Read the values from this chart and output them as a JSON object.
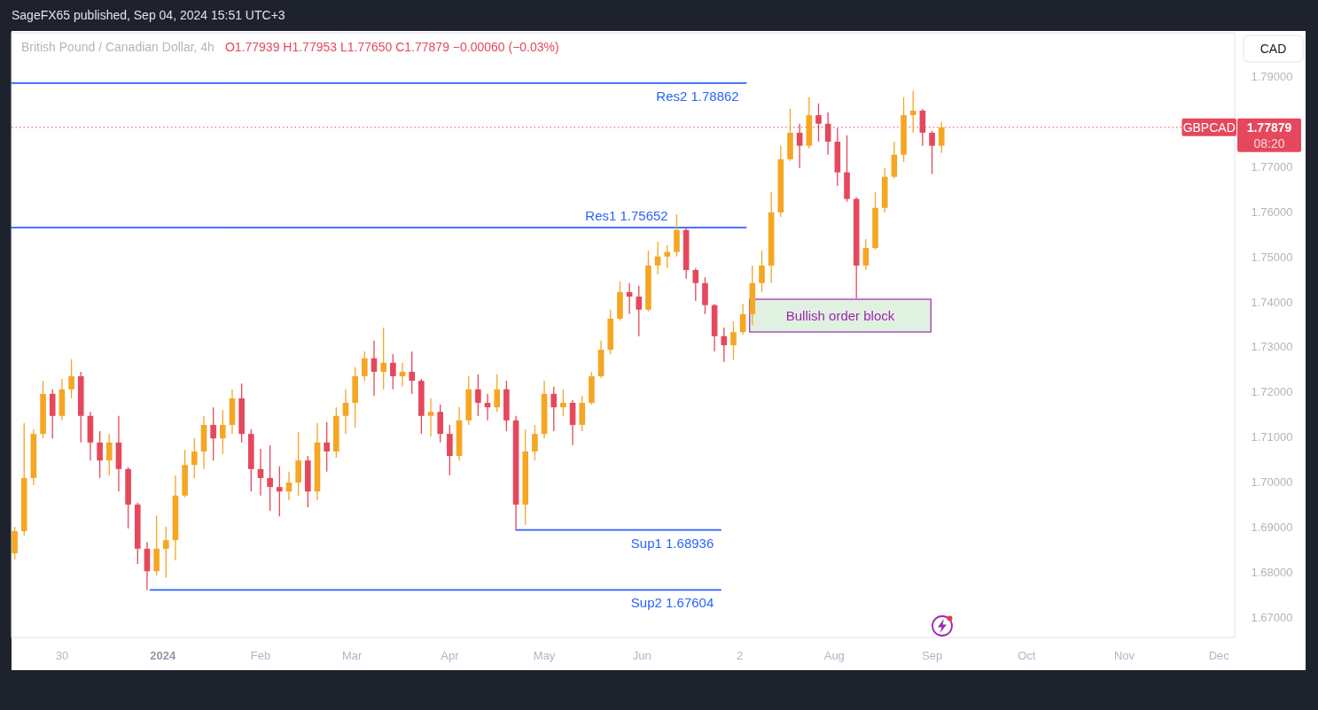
{
  "chart_data": {
    "type": "candlestick",
    "title": "British Pound / Canadian Dollar, 4h",
    "subtitle": "O1.77939 H1.77953 L1.77650 C1.77879 −0.00060 (−0.03%)",
    "ylabel": "CAD",
    "annotations": [
      "SageFX65 published, Sep 04, 2024 15:51 UTC+3",
      "1.77879",
      "08:20",
      "Bullish order block"
    ],
    "x": [
      "2023-11-15",
      "2023-11-18",
      "2023-11-21",
      "2023-11-24",
      "2023-11-27",
      "2023-11-30",
      "2023-12-03",
      "2023-12-06",
      "2023-12-09",
      "2023-12-12",
      "2023-12-15",
      "2023-12-18",
      "2023-12-21",
      "2023-12-24",
      "2023-12-27",
      "2023-12-30",
      "2024-01-02",
      "2024-01-05",
      "2024-01-08",
      "2024-01-11",
      "2024-01-14",
      "2024-01-17",
      "2024-01-20",
      "2024-01-23",
      "2024-01-26",
      "2024-01-29",
      "2024-02-01",
      "2024-02-04",
      "2024-02-07",
      "2024-02-10",
      "2024-02-13",
      "2024-02-16",
      "2024-02-19",
      "2024-02-22",
      "2024-02-25",
      "2024-02-28",
      "2024-03-02",
      "2024-03-05",
      "2024-03-08",
      "2024-03-11",
      "2024-03-14",
      "2024-03-17",
      "2024-03-20",
      "2024-03-23",
      "2024-03-26",
      "2024-03-29",
      "2024-04-01",
      "2024-04-04",
      "2024-04-07",
      "2024-04-10",
      "2024-04-13",
      "2024-04-16",
      "2024-04-19",
      "2024-04-22",
      "2024-04-25",
      "2024-04-28",
      "2024-05-01",
      "2024-05-04",
      "2024-05-07",
      "2024-05-10",
      "2024-05-13",
      "2024-05-16",
      "2024-05-19",
      "2024-05-22",
      "2024-05-25",
      "2024-05-28",
      "2024-05-31",
      "2024-06-03",
      "2024-06-06",
      "2024-06-09",
      "2024-06-12",
      "2024-06-15",
      "2024-06-18",
      "2024-06-21",
      "2024-06-24",
      "2024-06-27",
      "2024-06-30",
      "2024-07-03",
      "2024-07-06",
      "2024-07-09",
      "2024-07-12",
      "2024-07-15",
      "2024-07-18",
      "2024-07-21",
      "2024-07-24",
      "2024-07-27",
      "2024-07-30",
      "2024-08-02",
      "2024-08-05",
      "2024-08-08",
      "2024-08-11",
      "2024-08-14",
      "2024-08-17",
      "2024-08-20",
      "2024-08-23",
      "2024-08-26",
      "2024-08-29",
      "2024-09-01",
      "2024-09-04"
    ],
    "ohlc": [
      [
        1.6842,
        1.6901,
        1.6828,
        1.6891
      ],
      [
        1.6891,
        1.7131,
        1.6881,
        1.7009
      ],
      [
        1.7009,
        1.7117,
        1.6993,
        1.7107
      ],
      [
        1.7107,
        1.7225,
        1.7097,
        1.7196
      ],
      [
        1.7196,
        1.7206,
        1.7097,
        1.7147
      ],
      [
        1.7147,
        1.7229,
        1.7137,
        1.7206
      ],
      [
        1.7206,
        1.7273,
        1.7186,
        1.7235
      ],
      [
        1.7235,
        1.7245,
        1.7088,
        1.7147
      ],
      [
        1.7147,
        1.7156,
        1.7048,
        1.7088
      ],
      [
        1.7088,
        1.7113,
        1.7009,
        1.7048
      ],
      [
        1.7048,
        1.7107,
        1.7015,
        1.7088
      ],
      [
        1.7088,
        1.7147,
        1.6979,
        1.7029
      ],
      [
        1.7029,
        1.7033,
        1.6897,
        1.695
      ],
      [
        1.695,
        1.6954,
        1.6818,
        1.6852
      ],
      [
        1.6852,
        1.6867,
        1.676,
        1.6802
      ],
      [
        1.6802,
        1.6926,
        1.6793,
        1.6852
      ],
      [
        1.6852,
        1.6901,
        1.6787,
        1.6871
      ],
      [
        1.6871,
        1.7015,
        1.6826,
        1.697
      ],
      [
        1.697,
        1.7072,
        1.6966,
        1.7038
      ],
      [
        1.7038,
        1.7097,
        1.7009,
        1.7068
      ],
      [
        1.7068,
        1.7147,
        1.7029,
        1.7127
      ],
      [
        1.7127,
        1.7166,
        1.7048,
        1.7097
      ],
      [
        1.7097,
        1.716,
        1.7062,
        1.7127
      ],
      [
        1.7127,
        1.7206,
        1.7107,
        1.7186
      ],
      [
        1.7186,
        1.7219,
        1.7088,
        1.7107
      ],
      [
        1.7107,
        1.7117,
        1.6979,
        1.7029
      ],
      [
        1.7029,
        1.7074,
        1.697,
        1.7009
      ],
      [
        1.7009,
        1.7082,
        1.6936,
        1.6989
      ],
      [
        1.6989,
        1.7035,
        1.6924,
        1.6979
      ],
      [
        1.6979,
        1.7023,
        1.696,
        1.6999
      ],
      [
        1.6999,
        1.7111,
        1.697,
        1.7048
      ],
      [
        1.7048,
        1.7058,
        1.6944,
        1.6979
      ],
      [
        1.6979,
        1.7131,
        1.696,
        1.7088
      ],
      [
        1.7088,
        1.7133,
        1.7023,
        1.7068
      ],
      [
        1.7068,
        1.7166,
        1.7054,
        1.7147
      ],
      [
        1.7147,
        1.7206,
        1.7107,
        1.7176
      ],
      [
        1.7176,
        1.7255,
        1.7121,
        1.7235
      ],
      [
        1.7235,
        1.729,
        1.7225,
        1.7275
      ],
      [
        1.7275,
        1.7314,
        1.7192,
        1.7245
      ],
      [
        1.7245,
        1.7343,
        1.7206,
        1.7265
      ],
      [
        1.7265,
        1.7284,
        1.7206,
        1.7235
      ],
      [
        1.7235,
        1.7265,
        1.7212,
        1.7245
      ],
      [
        1.7245,
        1.729,
        1.7196,
        1.7225
      ],
      [
        1.7225,
        1.7229,
        1.7107,
        1.7147
      ],
      [
        1.7147,
        1.7186,
        1.7101,
        1.7156
      ],
      [
        1.7156,
        1.7172,
        1.7088,
        1.7107
      ],
      [
        1.7107,
        1.7127,
        1.7015,
        1.7058
      ],
      [
        1.7058,
        1.7166,
        1.7048,
        1.7137
      ],
      [
        1.7137,
        1.7235,
        1.7127,
        1.7206
      ],
      [
        1.7206,
        1.7239,
        1.7147,
        1.7176
      ],
      [
        1.7176,
        1.7196,
        1.7137,
        1.7166
      ],
      [
        1.7166,
        1.7239,
        1.7156,
        1.7206
      ],
      [
        1.7206,
        1.7225,
        1.7113,
        1.7137
      ],
      [
        1.7137,
        1.7147,
        1.6894,
        1.695
      ],
      [
        1.695,
        1.7117,
        1.6905,
        1.7068
      ],
      [
        1.7068,
        1.7127,
        1.7048,
        1.7107
      ],
      [
        1.7107,
        1.7225,
        1.7097,
        1.7196
      ],
      [
        1.7196,
        1.7212,
        1.7113,
        1.7166
      ],
      [
        1.7166,
        1.7206,
        1.7147,
        1.7176
      ],
      [
        1.7176,
        1.7182,
        1.7082,
        1.7127
      ],
      [
        1.7127,
        1.7192,
        1.7113,
        1.7176
      ],
      [
        1.7176,
        1.7245,
        1.7172,
        1.7235
      ],
      [
        1.7235,
        1.7314,
        1.7231,
        1.7294
      ],
      [
        1.7294,
        1.7383,
        1.7284,
        1.7363
      ],
      [
        1.7363,
        1.7446,
        1.7359,
        1.7422
      ],
      [
        1.7422,
        1.7442,
        1.7373,
        1.7412
      ],
      [
        1.7412,
        1.7436,
        1.7324,
        1.7383
      ],
      [
        1.7383,
        1.7514,
        1.7379,
        1.7481
      ],
      [
        1.7481,
        1.7534,
        1.7461,
        1.7501
      ],
      [
        1.7501,
        1.7526,
        1.7475,
        1.7511
      ],
      [
        1.7511,
        1.7595,
        1.7501,
        1.756
      ],
      [
        1.756,
        1.7564,
        1.7452,
        1.7471
      ],
      [
        1.7471,
        1.7475,
        1.7402,
        1.7442
      ],
      [
        1.7442,
        1.7455,
        1.7373,
        1.7393
      ],
      [
        1.7393,
        1.7396,
        1.729,
        1.7324
      ],
      [
        1.7324,
        1.7343,
        1.7267,
        1.7304
      ],
      [
        1.7304,
        1.7357,
        1.7271,
        1.7333
      ],
      [
        1.7333,
        1.7396,
        1.7328,
        1.7373
      ],
      [
        1.7373,
        1.7481,
        1.7349,
        1.7442
      ],
      [
        1.7442,
        1.7514,
        1.7422,
        1.7481
      ],
      [
        1.7481,
        1.7644,
        1.7442,
        1.7599
      ],
      [
        1.7599,
        1.7747,
        1.7589,
        1.7717
      ],
      [
        1.7717,
        1.7829,
        1.7713,
        1.7776
      ],
      [
        1.7776,
        1.7796,
        1.7697,
        1.7747
      ],
      [
        1.7747,
        1.7855,
        1.7741,
        1.7815
      ],
      [
        1.7815,
        1.7841,
        1.7756,
        1.7796
      ],
      [
        1.7796,
        1.7821,
        1.7727,
        1.7756
      ],
      [
        1.7756,
        1.7786,
        1.7658,
        1.7688
      ],
      [
        1.7688,
        1.777,
        1.7623,
        1.7629
      ],
      [
        1.7629,
        1.7633,
        1.7408,
        1.7481
      ],
      [
        1.7481,
        1.754,
        1.7471,
        1.752
      ],
      [
        1.752,
        1.7644,
        1.7516,
        1.7609
      ],
      [
        1.7609,
        1.7697,
        1.7599,
        1.7678
      ],
      [
        1.7678,
        1.7756,
        1.7674,
        1.7727
      ],
      [
        1.7727,
        1.7855,
        1.7711,
        1.7815
      ],
      [
        1.7815,
        1.7869,
        1.7776,
        1.7825
      ],
      [
        1.7825,
        1.7829,
        1.7747,
        1.7776
      ],
      [
        1.7776,
        1.778,
        1.7684,
        1.7747
      ],
      [
        1.7747,
        1.78,
        1.7731,
        1.7788
      ]
    ],
    "colors": [
      "#f5a623",
      "#f5a623",
      "#f5a623",
      "#f5a623",
      "#e5485c",
      "#f5a623",
      "#f5a623",
      "#e5485c",
      "#e5485c",
      "#e5485c",
      "#f5a623",
      "#e5485c",
      "#e5485c",
      "#e5485c",
      "#e5485c",
      "#f5a623",
      "#f5a623",
      "#f5a623",
      "#f5a623",
      "#f5a623",
      "#f5a623",
      "#e5485c",
      "#f5a623",
      "#f5a623",
      "#e5485c",
      "#e5485c",
      "#e5485c",
      "#e5485c",
      "#e5485c",
      "#f5a623",
      "#f5a623",
      "#e5485c",
      "#f5a623",
      "#e5485c",
      "#f5a623",
      "#f5a623",
      "#f5a623",
      "#f5a623",
      "#e5485c",
      "#f5a623",
      "#e5485c",
      "#f5a623",
      "#e5485c",
      "#e5485c",
      "#f5a623",
      "#e5485c",
      "#e5485c",
      "#f5a623",
      "#f5a623",
      "#e5485c",
      "#e5485c",
      "#f5a623",
      "#e5485c",
      "#e5485c",
      "#f5a623",
      "#f5a623",
      "#f5a623",
      "#e5485c",
      "#f5a623",
      "#e5485c",
      "#f5a623",
      "#f5a623",
      "#f5a623",
      "#f5a623",
      "#f5a623",
      "#e5485c",
      "#e5485c",
      "#f5a623",
      "#f5a623",
      "#f5a623",
      "#f5a623",
      "#e5485c",
      "#e5485c",
      "#e5485c",
      "#e5485c",
      "#e5485c",
      "#f5a623",
      "#f5a623",
      "#f5a623",
      "#f5a623",
      "#f5a623",
      "#f5a623",
      "#f5a623",
      "#e5485c",
      "#f5a623",
      "#e5485c",
      "#e5485c",
      "#e5485c",
      "#e5485c",
      "#e5485c",
      "#f5a623",
      "#f5a623",
      "#f5a623",
      "#f5a623",
      "#f5a623",
      "#f5a623",
      "#e5485c",
      "#e5485c",
      "#f5a623"
    ],
    "series": [
      {
        "type": "line",
        "name": "Res2 1.78862",
        "color": "#2962ff",
        "x": [
          "2023-11-14",
          "2024-07-04"
        ],
        "values": [
          1.78862,
          1.78862
        ]
      },
      {
        "type": "line",
        "name": "Res1 1.75652",
        "color": "#2962ff",
        "x": [
          "2023-11-14",
          "2024-07-04"
        ],
        "values": [
          1.75652,
          1.75652
        ]
      },
      {
        "type": "line",
        "name": "Sup1 1.68936",
        "color": "#2962ff",
        "x": [
          "2024-04-22",
          "2024-06-26"
        ],
        "values": [
          1.68936,
          1.68936
        ]
      },
      {
        "type": "line",
        "name": "Sup2 1.67604",
        "color": "#2962ff",
        "x": [
          "2023-12-28",
          "2024-06-26"
        ],
        "values": [
          1.67604,
          1.67604
        ]
      }
    ],
    "ref_lines": [
      {
        "axis": "y",
        "value": 1.77879,
        "label": "GBPCAD",
        "color": "#e5485c",
        "line_style": "dotted"
      }
    ],
    "xlim": [
      "2023-11-14",
      "2024-12-06"
    ],
    "xticks": [
      {
        "value": "2023-11-30",
        "label": "30"
      },
      {
        "value": "2024-01-01",
        "label": "2024"
      },
      {
        "value": "2024-02-01",
        "label": "Feb"
      },
      {
        "value": "2024-03-01",
        "label": "Mar"
      },
      {
        "value": "2024-04-01",
        "label": "Apr"
      },
      {
        "value": "2024-05-01",
        "label": "May"
      },
      {
        "value": "2024-06-01",
        "label": "Jun"
      },
      {
        "value": "2024-07-02",
        "label": "2"
      },
      {
        "value": "2024-08-01",
        "label": "Aug"
      },
      {
        "value": "2024-09-01",
        "label": "Sep"
      },
      {
        "value": "2024-10-01",
        "label": "Oct"
      },
      {
        "value": "2024-11-01",
        "label": "Nov"
      },
      {
        "value": "2024-12-01",
        "label": "Dec"
      }
    ],
    "ylim": [
      1.6655,
      1.7998
    ],
    "yticks": [
      {
        "value": 1.67,
        "label": "1.67000"
      },
      {
        "value": 1.68,
        "label": "1.68000"
      },
      {
        "value": 1.69,
        "label": "1.69000"
      },
      {
        "value": 1.7,
        "label": "1.70000"
      },
      {
        "value": 1.71,
        "label": "1.71000"
      },
      {
        "value": 1.72,
        "label": "1.72000"
      },
      {
        "value": 1.73,
        "label": "1.73000"
      },
      {
        "value": 1.74,
        "label": "1.74000"
      },
      {
        "value": 1.75,
        "label": "1.75000"
      },
      {
        "value": 1.76,
        "label": "1.76000"
      },
      {
        "value": 1.77,
        "label": "1.77000"
      },
      {
        "value": 1.79,
        "label": "1.79000"
      }
    ]
  }
}
